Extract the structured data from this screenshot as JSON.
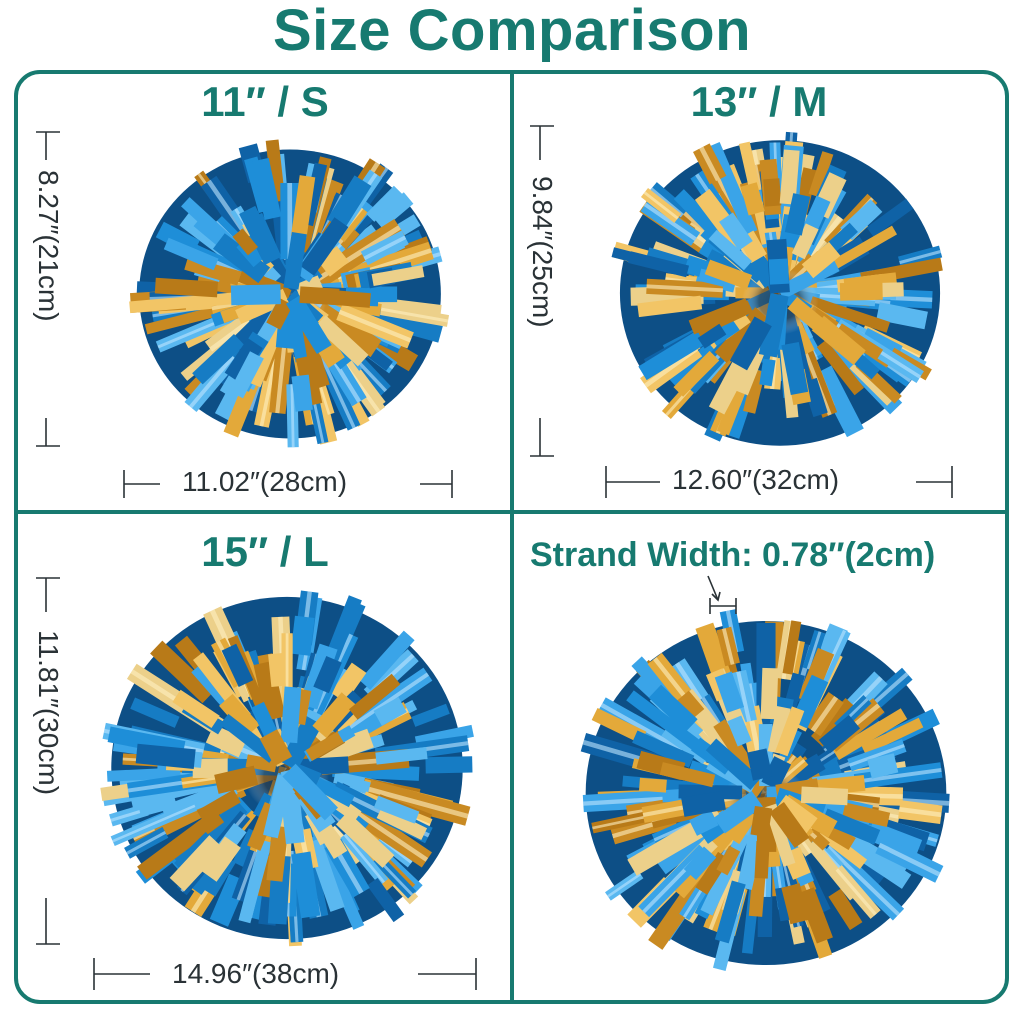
{
  "title": "Size Comparison",
  "colors": {
    "accent": "#177a70",
    "pom_blue": "#1e8ed8",
    "pom_gold": "#e3a93a",
    "dimension_text": "#2a3236"
  },
  "panels": [
    {
      "id": "small",
      "size_label": "11″ / S",
      "height_label": "8.27″(21cm)",
      "width_label": "11.02″(28cm)"
    },
    {
      "id": "medium",
      "size_label": "13″ / M",
      "height_label": "9.84″(25cm)",
      "width_label": "12.60″(32cm)"
    },
    {
      "id": "large",
      "size_label": "15″ / L",
      "height_label": "11.81″(30cm)",
      "width_label": "14.96″(38cm)"
    },
    {
      "id": "strand",
      "strand_label": "Strand Width: 0.78″(2cm)"
    }
  ]
}
